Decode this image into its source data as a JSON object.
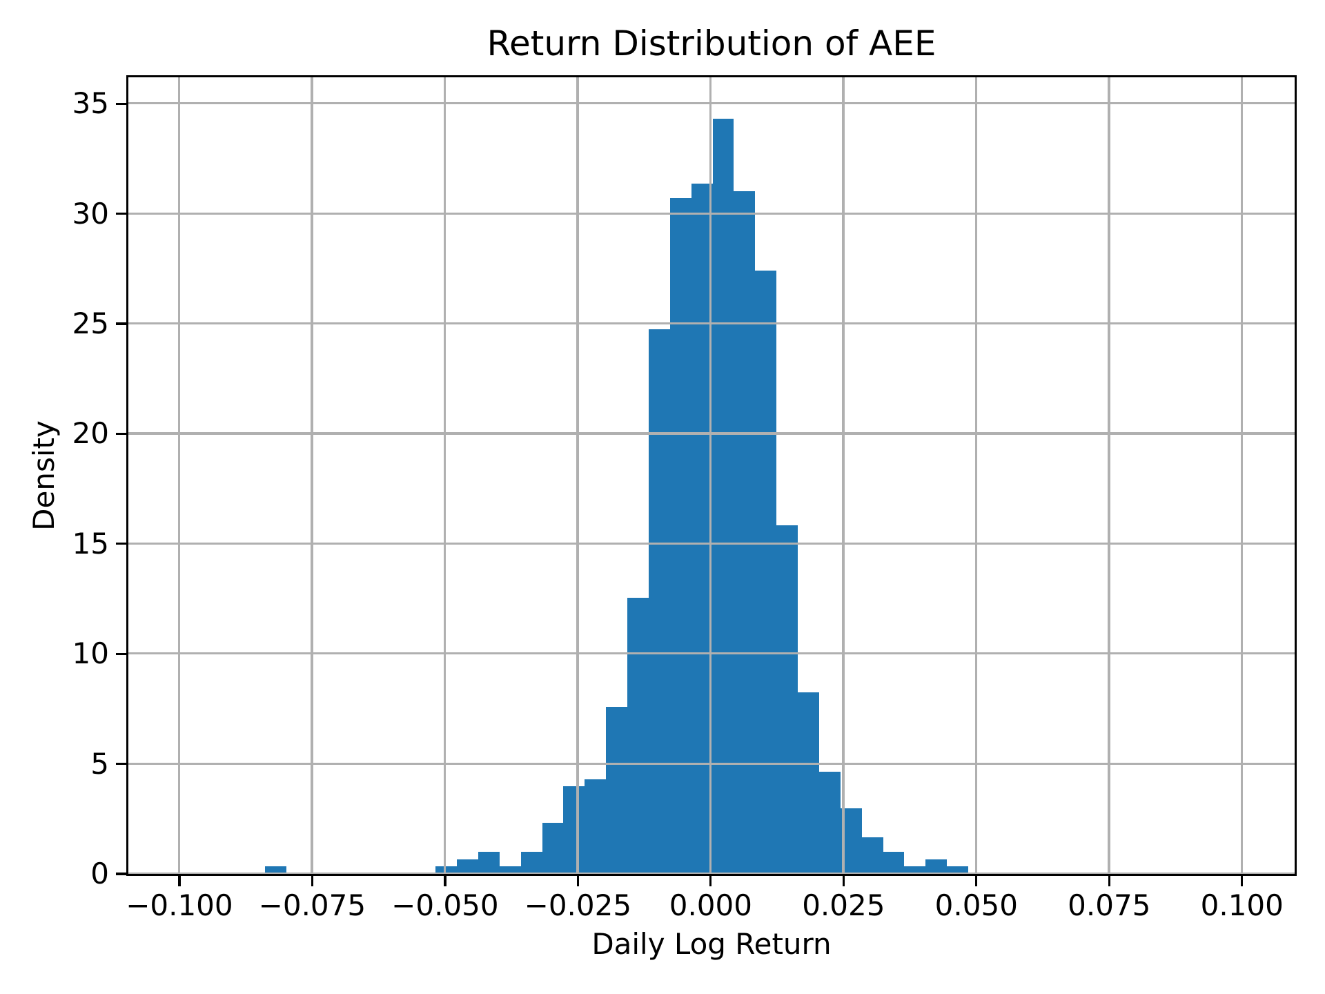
{
  "figure": {
    "background": "#ffffff"
  },
  "chart_data": {
    "type": "histogram",
    "title": "Return Distribution of AEE",
    "xlabel": "Daily Log Return",
    "ylabel": "Density",
    "bar_color": "#1f77b4",
    "grid_color": "#b0b0b0",
    "axis_color": "#000000",
    "grid": true,
    "legend": false,
    "xlim": [
      -0.1096,
      0.1099
    ],
    "ylim": [
      0,
      36.2
    ],
    "x_ticks": [
      {
        "value": -0.1,
        "label": "−0.100"
      },
      {
        "value": -0.075,
        "label": "−0.075"
      },
      {
        "value": -0.05,
        "label": "−0.050"
      },
      {
        "value": -0.025,
        "label": "−0.025"
      },
      {
        "value": 0.0,
        "label": "0.000"
      },
      {
        "value": 0.025,
        "label": "0.025"
      },
      {
        "value": 0.05,
        "label": "0.050"
      },
      {
        "value": 0.075,
        "label": "0.075"
      },
      {
        "value": 0.1,
        "label": "0.100"
      }
    ],
    "y_ticks": [
      {
        "value": 0,
        "label": "0"
      },
      {
        "value": 5,
        "label": "5"
      },
      {
        "value": 10,
        "label": "10"
      },
      {
        "value": 15,
        "label": "15"
      },
      {
        "value": 20,
        "label": "20"
      },
      {
        "value": 25,
        "label": "25"
      },
      {
        "value": 30,
        "label": "30"
      },
      {
        "value": 35,
        "label": "35"
      }
    ],
    "bins": {
      "start": -0.0838,
      "width": 0.00401,
      "counts": [
        1,
        0,
        0,
        0,
        0,
        0,
        0,
        0,
        1,
        2,
        3,
        1,
        3,
        7,
        12,
        13,
        23,
        38,
        75,
        93,
        95,
        104,
        94,
        83,
        48,
        25,
        14,
        9,
        5,
        3,
        1,
        2,
        1
      ],
      "density_heights": [
        0.33,
        0,
        0,
        0,
        0,
        0,
        0,
        0,
        0.33,
        0.66,
        0.99,
        0.33,
        0.99,
        2.31,
        3.96,
        4.29,
        7.59,
        12.54,
        24.75,
        30.69,
        31.35,
        34.31,
        31.02,
        27.39,
        15.84,
        8.25,
        4.62,
        2.97,
        1.65,
        0.99,
        0.33,
        0.66,
        0.33
      ]
    }
  }
}
